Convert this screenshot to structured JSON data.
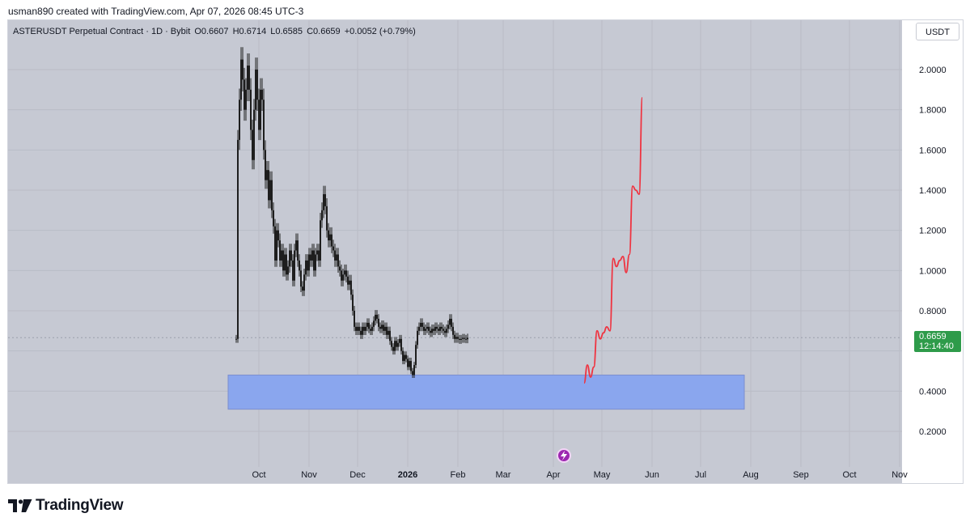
{
  "credit": "usman890 created with TradingView.com, Apr 07, 2026 08:45 UTC-3",
  "legend": {
    "symbol": "ASTERUSDT Perpetual Contract · 1D · Bybit",
    "open": "O0.6607",
    "high": "H0.6714",
    "low": "L0.6585",
    "close": "C0.6659",
    "change": "+0.0052 (+0.79%)"
  },
  "currency": "USDT",
  "last_price": {
    "price": "0.6659",
    "countdown": "12:14:40"
  },
  "brand": {
    "name": "TradingView"
  },
  "colors": {
    "plot_bg": "#c6c9d3",
    "candle": "#1e1e1e",
    "projection": "#ef3340",
    "zone": "#8aa6ee",
    "zone_border": "#7c8fcf",
    "badge": "#2e9b4a"
  },
  "chart_data": {
    "type": "candlestick",
    "title": "",
    "xlabel": "",
    "ylabel": "",
    "y_axis_labels": [
      "2.0000",
      "1.8000",
      "1.6000",
      "1.4000",
      "1.2000",
      "1.0000",
      "0.8000",
      "0.4000",
      "0.2000"
    ],
    "x_axis_labels": [
      "Oct",
      "Nov",
      "Dec",
      "2026",
      "Feb",
      "Mar",
      "Apr",
      "May",
      "Jun",
      "Jul",
      "Aug",
      "Sep",
      "Oct",
      "Nov"
    ],
    "ylim": [
      0.1,
      2.25
    ],
    "grid": true,
    "price_series": [
      [
        "Sep 17",
        0.66
      ],
      [
        "Sep 18",
        1.65
      ],
      [
        "Sep 19",
        1.85
      ],
      [
        "Sep 20",
        2.05
      ],
      [
        "Sep 21",
        1.95
      ],
      [
        "Sep 22",
        1.8
      ],
      [
        "Sep 23",
        1.9
      ],
      [
        "Sep 24",
        2.02
      ],
      [
        "Sep 25",
        1.9
      ],
      [
        "Sep 26",
        1.7
      ],
      [
        "Sep 27",
        1.55
      ],
      [
        "Sep 28",
        1.8
      ],
      [
        "Sep 29",
        2.0
      ],
      [
        "Sep 30",
        1.85
      ],
      [
        "Oct 1",
        1.7
      ],
      [
        "Oct 2",
        1.9
      ],
      [
        "Oct 3",
        1.85
      ],
      [
        "Oct 4",
        1.6
      ],
      [
        "Oct 5",
        1.45
      ],
      [
        "Oct 6",
        1.5
      ],
      [
        "Oct 7",
        1.35
      ],
      [
        "Oct 8",
        1.45
      ],
      [
        "Oct 9",
        1.3
      ],
      [
        "Oct 10",
        1.22
      ],
      [
        "Oct 11",
        1.05
      ],
      [
        "Oct 12",
        1.2
      ],
      [
        "Oct 13",
        1.15
      ],
      [
        "Oct 14",
        1.05
      ],
      [
        "Oct 15",
        1.1
      ],
      [
        "Oct 16",
        1.0
      ],
      [
        "Oct 17",
        1.08
      ],
      [
        "Oct 18",
        0.98
      ],
      [
        "Oct 19",
        1.02
      ],
      [
        "Oct 20",
        1.1
      ],
      [
        "Oct 21",
        1.05
      ],
      [
        "Oct 22",
        0.95
      ],
      [
        "Oct 23",
        1.1
      ],
      [
        "Oct 24",
        1.15
      ],
      [
        "Oct 25",
        1.05
      ],
      [
        "Oct 26",
        1.0
      ],
      [
        "Oct 27",
        0.92
      ],
      [
        "Oct 28",
        0.9
      ],
      [
        "Oct 29",
        0.98
      ],
      [
        "Oct 30",
        1.05
      ],
      [
        "Oct 31",
        1.0
      ],
      [
        "Nov 1",
        1.08
      ],
      [
        "Nov 2",
        1.05
      ],
      [
        "Nov 3",
        1.1
      ],
      [
        "Nov 4",
        1.0
      ],
      [
        "Nov 5",
        1.08
      ],
      [
        "Nov 6",
        1.1
      ],
      [
        "Nov 7",
        1.05
      ],
      [
        "Nov 8",
        1.25
      ],
      [
        "Nov 9",
        1.3
      ],
      [
        "Nov 10",
        1.38
      ],
      [
        "Nov 11",
        1.32
      ],
      [
        "Nov 12",
        1.2
      ],
      [
        "Nov 13",
        1.15
      ],
      [
        "Nov 14",
        1.18
      ],
      [
        "Nov 15",
        1.12
      ],
      [
        "Nov 16",
        1.1
      ],
      [
        "Nov 17",
        1.05
      ],
      [
        "Nov 18",
        1.08
      ],
      [
        "Nov 19",
        1.02
      ],
      [
        "Nov 20",
        1.0
      ],
      [
        "Nov 21",
        0.95
      ],
      [
        "Nov 22",
        0.98
      ],
      [
        "Nov 23",
        1.0
      ],
      [
        "Nov 24",
        0.97
      ],
      [
        "Nov 25",
        0.93
      ],
      [
        "Nov 26",
        0.95
      ],
      [
        "Nov 27",
        0.88
      ],
      [
        "Nov 28",
        0.8
      ],
      [
        "Nov 29",
        0.72
      ],
      [
        "Nov 30",
        0.7
      ],
      [
        "Dec 1",
        0.72
      ],
      [
        "Dec 2",
        0.7
      ],
      [
        "Dec 3",
        0.68
      ],
      [
        "Dec 4",
        0.72
      ],
      [
        "Dec 5",
        0.7
      ],
      [
        "Dec 6",
        0.72
      ],
      [
        "Dec 7",
        0.74
      ],
      [
        "Dec 8",
        0.71
      ],
      [
        "Dec 9",
        0.7
      ],
      [
        "Dec 10",
        0.72
      ],
      [
        "Dec 11",
        0.75
      ],
      [
        "Dec 12",
        0.78
      ],
      [
        "Dec 13",
        0.76
      ],
      [
        "Dec 14",
        0.72
      ],
      [
        "Dec 15",
        0.71
      ],
      [
        "Dec 16",
        0.73
      ],
      [
        "Dec 17",
        0.7
      ],
      [
        "Dec 18",
        0.72
      ],
      [
        "Dec 19",
        0.68
      ],
      [
        "Dec 20",
        0.7
      ],
      [
        "Dec 21",
        0.65
      ],
      [
        "Dec 22",
        0.62
      ],
      [
        "Dec 23",
        0.6
      ],
      [
        "Dec 24",
        0.65
      ],
      [
        "Dec 25",
        0.62
      ],
      [
        "Dec 26",
        0.64
      ],
      [
        "Dec 27",
        0.66
      ],
      [
        "Dec 28",
        0.6
      ],
      [
        "Dec 29",
        0.55
      ],
      [
        "Dec 30",
        0.58
      ],
      [
        "Dec 31",
        0.56
      ],
      [
        "Jan 1",
        0.52
      ],
      [
        "Jan 2",
        0.55
      ],
      [
        "Jan 3",
        0.5
      ],
      [
        "Jan 4",
        0.48
      ],
      [
        "Jan 5",
        0.53
      ],
      [
        "Jan 6",
        0.63
      ],
      [
        "Jan 7",
        0.7
      ],
      [
        "Jan 8",
        0.72
      ],
      [
        "Jan 9",
        0.74
      ],
      [
        "Jan 10",
        0.72
      ],
      [
        "Jan 11",
        0.7
      ],
      [
        "Jan 12",
        0.71
      ],
      [
        "Jan 13",
        0.72
      ],
      [
        "Jan 14",
        0.7
      ],
      [
        "Jan 15",
        0.69
      ],
      [
        "Jan 16",
        0.71
      ],
      [
        "Jan 17",
        0.7
      ],
      [
        "Jan 18",
        0.72
      ],
      [
        "Jan 19",
        0.71
      ],
      [
        "Jan 20",
        0.7
      ],
      [
        "Jan 21",
        0.72
      ],
      [
        "Jan 22",
        0.71
      ],
      [
        "Jan 23",
        0.7
      ],
      [
        "Jan 24",
        0.69
      ],
      [
        "Jan 25",
        0.71
      ],
      [
        "Jan 26",
        0.73
      ],
      [
        "Jan 27",
        0.76
      ],
      [
        "Jan 28",
        0.72
      ],
      [
        "Jan 29",
        0.68
      ],
      [
        "Jan 30",
        0.66
      ],
      [
        "Jan 31",
        0.67
      ],
      [
        "Feb 1",
        0.66
      ],
      [
        "Feb 2",
        0.655
      ],
      [
        "Feb 3",
        0.66
      ],
      [
        "Feb 4",
        0.665
      ],
      [
        "Feb 5",
        0.66
      ],
      [
        "Feb 6",
        0.658
      ],
      [
        "Feb 7",
        0.6659
      ]
    ],
    "projection_series": [
      [
        "Apr 20",
        0.44
      ],
      [
        "Apr 22",
        0.53
      ],
      [
        "Apr 24",
        0.47
      ],
      [
        "Apr 26",
        0.52
      ],
      [
        "Apr 28",
        0.7
      ],
      [
        "Apr 30",
        0.66
      ],
      [
        "May 2",
        0.69
      ],
      [
        "May 4",
        0.72
      ],
      [
        "May 6",
        0.7
      ],
      [
        "May 8",
        1.06
      ],
      [
        "May 10",
        1.02
      ],
      [
        "May 12",
        1.05
      ],
      [
        "May 14",
        1.07
      ],
      [
        "May 16",
        0.99
      ],
      [
        "May 18",
        1.08
      ],
      [
        "May 20",
        1.42
      ],
      [
        "May 22",
        1.4
      ],
      [
        "May 24",
        1.38
      ],
      [
        "May 26",
        1.86
      ]
    ],
    "zone": {
      "from": "Sep 12",
      "to": "Jul 28",
      "high": 0.48,
      "low": 0.31
    },
    "last_price": 0.6659
  }
}
